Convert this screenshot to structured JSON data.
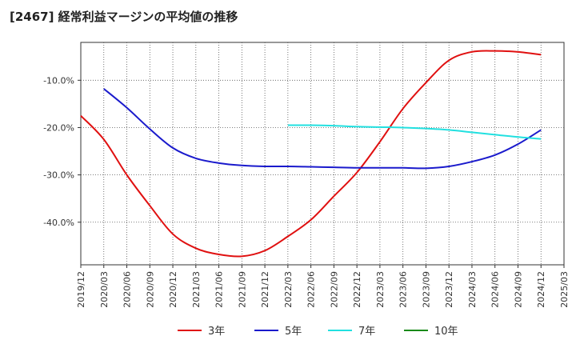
{
  "chart_data": {
    "type": "line",
    "title": "[2467]  経常利益マージンの平均値の推移",
    "xlabel": "",
    "ylabel": "",
    "ylim": [
      -49.0,
      -2.0
    ],
    "yticks": [
      -40.0,
      -30.0,
      -20.0,
      -10.0
    ],
    "ytick_labels": [
      "-40.0%",
      "-30.0%",
      "-20.0%",
      "-10.0%"
    ],
    "x_tick_labels": [
      "2019/12",
      "2020/03",
      "2020/06",
      "2020/09",
      "2020/12",
      "2021/03",
      "2021/06",
      "2021/09",
      "2021/12",
      "2022/03",
      "2022/06",
      "2022/09",
      "2022/12",
      "2023/03",
      "2023/06",
      "2023/09",
      "2023/12",
      "2024/03",
      "2024/06",
      "2024/09",
      "2024/12",
      "2025/03"
    ],
    "grid": true,
    "legend_position": "bottom",
    "series": [
      {
        "name": "3年",
        "color": "#e01010",
        "points": [
          [
            "2019/12",
            -17.5
          ],
          [
            "2020/03",
            -22.5
          ],
          [
            "2020/06",
            -30.0
          ],
          [
            "2020/09",
            -36.5
          ],
          [
            "2020/12",
            -42.5
          ],
          [
            "2021/03",
            -45.5
          ],
          [
            "2021/06",
            -46.8
          ],
          [
            "2021/09",
            -47.2
          ],
          [
            "2021/12",
            -46.0
          ],
          [
            "2022/03",
            -43.0
          ],
          [
            "2022/06",
            -39.5
          ],
          [
            "2022/09",
            -34.5
          ],
          [
            "2022/12",
            -29.5
          ],
          [
            "2023/03",
            -23.0
          ],
          [
            "2023/06",
            -16.0
          ],
          [
            "2023/09",
            -10.5
          ],
          [
            "2023/12",
            -5.8
          ],
          [
            "2024/03",
            -4.0
          ],
          [
            "2024/06",
            -3.8
          ],
          [
            "2024/09",
            -4.0
          ],
          [
            "2024/12",
            -4.6
          ]
        ]
      },
      {
        "name": "5年",
        "color": "#1a1acc",
        "points": [
          [
            "2020/03",
            -11.8
          ],
          [
            "2020/06",
            -15.8
          ],
          [
            "2020/09",
            -20.3
          ],
          [
            "2020/12",
            -24.3
          ],
          [
            "2021/03",
            -26.5
          ],
          [
            "2021/06",
            -27.5
          ],
          [
            "2021/09",
            -28.0
          ],
          [
            "2021/12",
            -28.2
          ],
          [
            "2022/03",
            -28.2
          ],
          [
            "2022/06",
            -28.3
          ],
          [
            "2022/09",
            -28.4
          ],
          [
            "2022/12",
            -28.5
          ],
          [
            "2023/03",
            -28.5
          ],
          [
            "2023/06",
            -28.5
          ],
          [
            "2023/09",
            -28.6
          ],
          [
            "2023/12",
            -28.2
          ],
          [
            "2024/03",
            -27.2
          ],
          [
            "2024/06",
            -25.8
          ],
          [
            "2024/09",
            -23.5
          ],
          [
            "2024/12",
            -20.5
          ]
        ]
      },
      {
        "name": "7年",
        "color": "#22e0e0",
        "points": [
          [
            "2022/03",
            -19.5
          ],
          [
            "2022/06",
            -19.5
          ],
          [
            "2022/09",
            -19.6
          ],
          [
            "2022/12",
            -19.8
          ],
          [
            "2023/03",
            -19.9
          ],
          [
            "2023/06",
            -20.0
          ],
          [
            "2023/09",
            -20.2
          ],
          [
            "2023/12",
            -20.5
          ],
          [
            "2024/03",
            -21.0
          ],
          [
            "2024/06",
            -21.5
          ],
          [
            "2024/09",
            -22.0
          ],
          [
            "2024/12",
            -22.4
          ]
        ]
      },
      {
        "name": "10年",
        "color": "#1a8a1a",
        "points": []
      }
    ]
  }
}
